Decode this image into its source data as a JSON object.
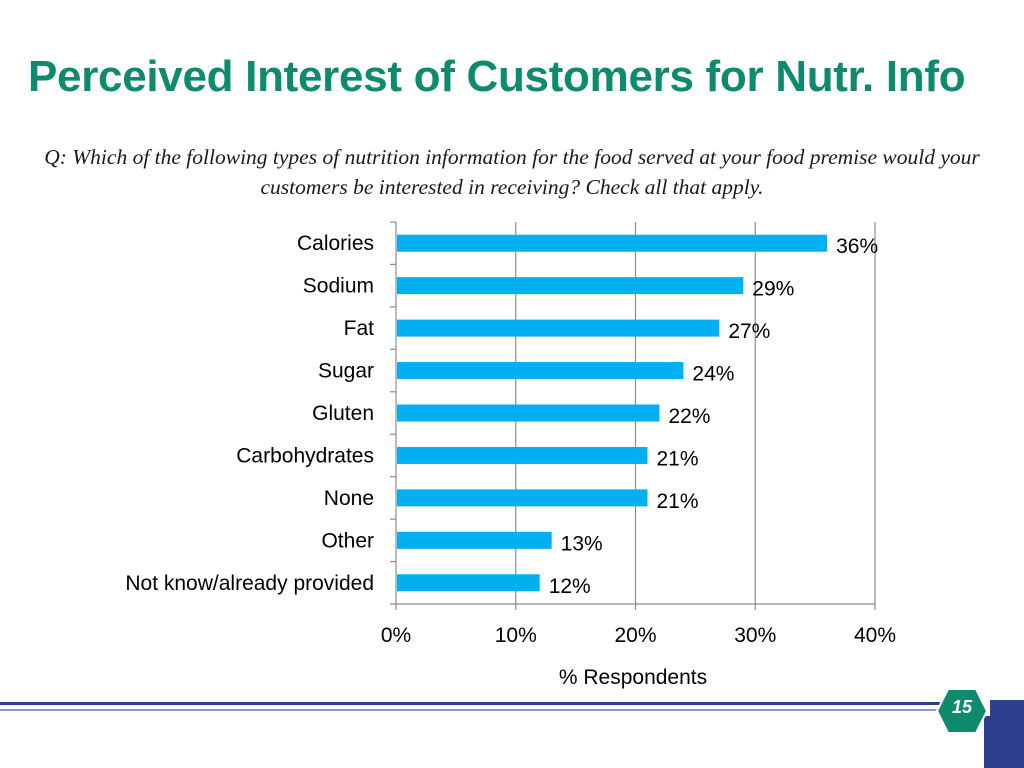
{
  "slide": {
    "title": "Perceived Interest of Customers for Nutr. Info",
    "question": "Q: Which of the following types of nutrition information for the food served at your food premise would your customers be interested in receiving? Check all that apply.",
    "page_number": "15"
  },
  "colors": {
    "title": "#0e8a6e",
    "bar": "#00b0f0",
    "footer_navy": "#2e3f8f",
    "footer_light": "#c5cbe6",
    "badge_green": "#0e8a6e"
  },
  "chart_data": {
    "type": "bar",
    "orientation": "horizontal",
    "categories": [
      "Calories",
      "Sodium",
      "Fat",
      "Sugar",
      "Gluten",
      "Carbohydrates",
      "None",
      "Other",
      "Not know/already provided"
    ],
    "values": [
      36,
      29,
      27,
      24,
      22,
      21,
      21,
      13,
      12
    ],
    "data_labels": [
      "36%",
      "29%",
      "27%",
      "24%",
      "22%",
      "21%",
      "21%",
      "13%",
      "12%"
    ],
    "xlabel": "% Respondents",
    "ylabel": "",
    "xlim": [
      0,
      40
    ],
    "x_ticks": [
      0,
      10,
      20,
      30,
      40
    ],
    "x_tick_labels": [
      "0%",
      "10%",
      "20%",
      "30%",
      "40%"
    ],
    "grid": "vertical",
    "legend": "none"
  }
}
